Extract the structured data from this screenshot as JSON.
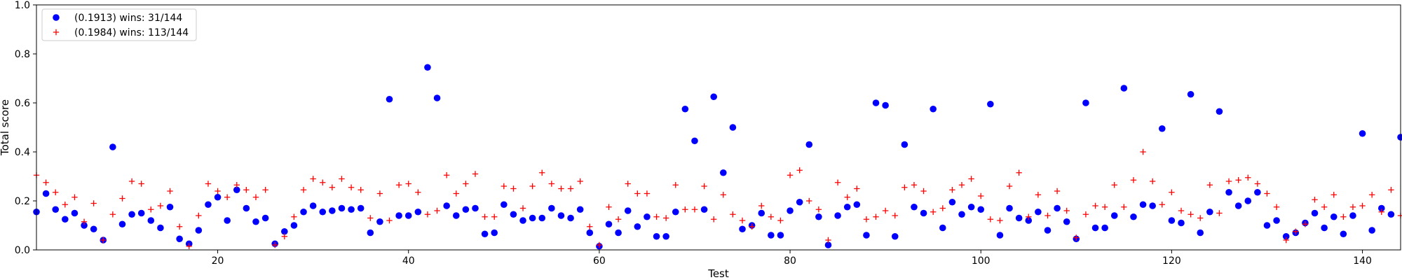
{
  "chart_data": {
    "type": "scatter",
    "title": "",
    "xlabel": "Test",
    "ylabel": "Total score",
    "xlim": [
      1,
      144
    ],
    "ylim": [
      0,
      1.0
    ],
    "xticks": [
      20,
      40,
      60,
      80,
      100,
      120,
      140
    ],
    "yticks": [
      0.0,
      0.2,
      0.4,
      0.6,
      0.8,
      1.0
    ],
    "xtick_labels": [
      "20",
      "40",
      "60",
      "80",
      "100",
      "120",
      "140"
    ],
    "ytick_labels": [
      "0.0",
      "0.2",
      "0.4",
      "0.6",
      "0.8",
      "1.0"
    ],
    "grid": false,
    "legend_position": "top-left",
    "series": [
      {
        "name": "(0.1913) wins: 31/144",
        "marker": "circle",
        "color": "#0000ff",
        "x": [
          1,
          2,
          3,
          4,
          5,
          6,
          7,
          8,
          9,
          10,
          11,
          12,
          13,
          14,
          15,
          16,
          17,
          18,
          19,
          20,
          21,
          22,
          23,
          24,
          25,
          26,
          27,
          28,
          29,
          30,
          31,
          32,
          33,
          34,
          35,
          36,
          37,
          38,
          39,
          40,
          41,
          42,
          43,
          44,
          45,
          46,
          47,
          48,
          49,
          50,
          51,
          52,
          53,
          54,
          55,
          56,
          57,
          58,
          59,
          60,
          61,
          62,
          63,
          64,
          65,
          66,
          67,
          68,
          69,
          70,
          71,
          72,
          73,
          74,
          75,
          76,
          77,
          78,
          79,
          80,
          81,
          82,
          83,
          84,
          85,
          86,
          87,
          88,
          89,
          90,
          91,
          92,
          93,
          94,
          95,
          96,
          97,
          98,
          99,
          100,
          101,
          102,
          103,
          104,
          105,
          106,
          107,
          108,
          109,
          110,
          111,
          112,
          113,
          114,
          115,
          116,
          117,
          118,
          119,
          120,
          121,
          122,
          123,
          124,
          125,
          126,
          127,
          128,
          129,
          130,
          131,
          132,
          133,
          134,
          135,
          136,
          137,
          138,
          139,
          140,
          141,
          142,
          143,
          144
        ],
        "y": [
          0.155,
          0.23,
          0.165,
          0.125,
          0.15,
          0.1,
          0.085,
          0.04,
          0.42,
          0.105,
          0.145,
          0.15,
          0.12,
          0.09,
          0.175,
          0.045,
          0.025,
          0.08,
          0.185,
          0.215,
          0.12,
          0.245,
          0.17,
          0.115,
          0.13,
          0.025,
          0.075,
          0.1,
          0.155,
          0.18,
          0.155,
          0.16,
          0.17,
          0.165,
          0.17,
          0.07,
          0.115,
          0.615,
          0.14,
          0.14,
          0.155,
          0.745,
          0.62,
          0.18,
          0.14,
          0.165,
          0.17,
          0.065,
          0.07,
          0.185,
          0.145,
          0.12,
          0.13,
          0.13,
          0.17,
          0.14,
          0.13,
          0.165,
          0.07,
          0.015,
          0.105,
          0.07,
          0.16,
          0.095,
          0.135,
          0.055,
          0.055,
          0.155,
          0.575,
          0.445,
          0.165,
          0.625,
          0.315,
          0.5,
          0.085,
          0.1,
          0.15,
          0.06,
          0.06,
          0.16,
          0.195,
          0.43,
          0.135,
          0.02,
          0.14,
          0.175,
          0.185,
          0.06,
          0.6,
          0.59,
          0.055,
          0.43,
          0.175,
          0.15,
          0.575,
          0.09,
          0.195,
          0.145,
          0.175,
          0.165,
          0.595,
          0.06,
          0.17,
          0.13,
          0.12,
          0.155,
          0.08,
          0.17,
          0.115,
          0.045,
          0.6,
          0.09,
          0.09,
          0.14,
          0.66,
          0.135,
          0.185,
          0.18,
          0.495,
          0.12,
          0.11,
          0.635,
          0.07,
          0.155,
          0.565,
          0.235,
          0.18,
          0.2,
          0.235,
          0.1,
          0.12,
          0.055,
          0.07,
          0.11,
          0.15,
          0.09,
          0.135,
          0.065,
          0.14,
          0.475,
          0.08,
          0.17,
          0.145,
          0.46
        ]
      },
      {
        "name": "(0.1984) wins: 113/144",
        "marker": "plus",
        "color": "#ff0000",
        "x": [
          1,
          2,
          3,
          4,
          5,
          6,
          7,
          8,
          9,
          10,
          11,
          12,
          13,
          14,
          15,
          16,
          17,
          18,
          19,
          20,
          21,
          22,
          23,
          24,
          25,
          26,
          27,
          28,
          29,
          30,
          31,
          32,
          33,
          34,
          35,
          36,
          37,
          38,
          39,
          40,
          41,
          42,
          43,
          44,
          45,
          46,
          47,
          48,
          49,
          50,
          51,
          52,
          53,
          54,
          55,
          56,
          57,
          58,
          59,
          60,
          61,
          62,
          63,
          64,
          65,
          66,
          67,
          68,
          69,
          70,
          71,
          72,
          73,
          74,
          75,
          76,
          77,
          78,
          79,
          80,
          81,
          82,
          83,
          84,
          85,
          86,
          87,
          88,
          89,
          90,
          91,
          92,
          93,
          94,
          95,
          96,
          97,
          98,
          99,
          100,
          101,
          102,
          103,
          104,
          105,
          106,
          107,
          108,
          109,
          110,
          111,
          112,
          113,
          114,
          115,
          116,
          117,
          118,
          119,
          120,
          121,
          122,
          123,
          124,
          125,
          126,
          127,
          128,
          129,
          130,
          131,
          132,
          133,
          134,
          135,
          136,
          137,
          138,
          139,
          140,
          141,
          142,
          143,
          144
        ],
        "y": [
          0.305,
          0.275,
          0.235,
          0.185,
          0.215,
          0.115,
          0.19,
          0.04,
          0.145,
          0.21,
          0.28,
          0.27,
          0.165,
          0.18,
          0.24,
          0.095,
          0.015,
          0.14,
          0.27,
          0.24,
          0.215,
          0.265,
          0.245,
          0.215,
          0.245,
          0.02,
          0.055,
          0.135,
          0.245,
          0.29,
          0.275,
          0.255,
          0.29,
          0.255,
          0.245,
          0.13,
          0.23,
          0.12,
          0.265,
          0.27,
          0.235,
          0.145,
          0.16,
          0.305,
          0.23,
          0.27,
          0.31,
          0.135,
          0.135,
          0.26,
          0.25,
          0.17,
          0.26,
          0.315,
          0.27,
          0.25,
          0.25,
          0.28,
          0.095,
          0.02,
          0.175,
          0.125,
          0.27,
          0.23,
          0.23,
          0.135,
          0.13,
          0.265,
          0.165,
          0.165,
          0.26,
          0.125,
          0.225,
          0.145,
          0.12,
          0.095,
          0.18,
          0.135,
          0.12,
          0.305,
          0.325,
          0.2,
          0.165,
          0.04,
          0.275,
          0.215,
          0.25,
          0.125,
          0.135,
          0.16,
          0.14,
          0.255,
          0.265,
          0.24,
          0.155,
          0.17,
          0.245,
          0.265,
          0.29,
          0.22,
          0.125,
          0.12,
          0.26,
          0.315,
          0.135,
          0.225,
          0.14,
          0.24,
          0.16,
          0.05,
          0.145,
          0.18,
          0.175,
          0.265,
          0.175,
          0.285,
          0.4,
          0.28,
          0.185,
          0.235,
          0.16,
          0.145,
          0.13,
          0.265,
          0.15,
          0.28,
          0.285,
          0.295,
          0.27,
          0.23,
          0.175,
          0.04,
          0.075,
          0.105,
          0.205,
          0.175,
          0.225,
          0.135,
          0.175,
          0.18,
          0.225,
          0.155,
          0.245,
          0.14
        ]
      }
    ]
  }
}
